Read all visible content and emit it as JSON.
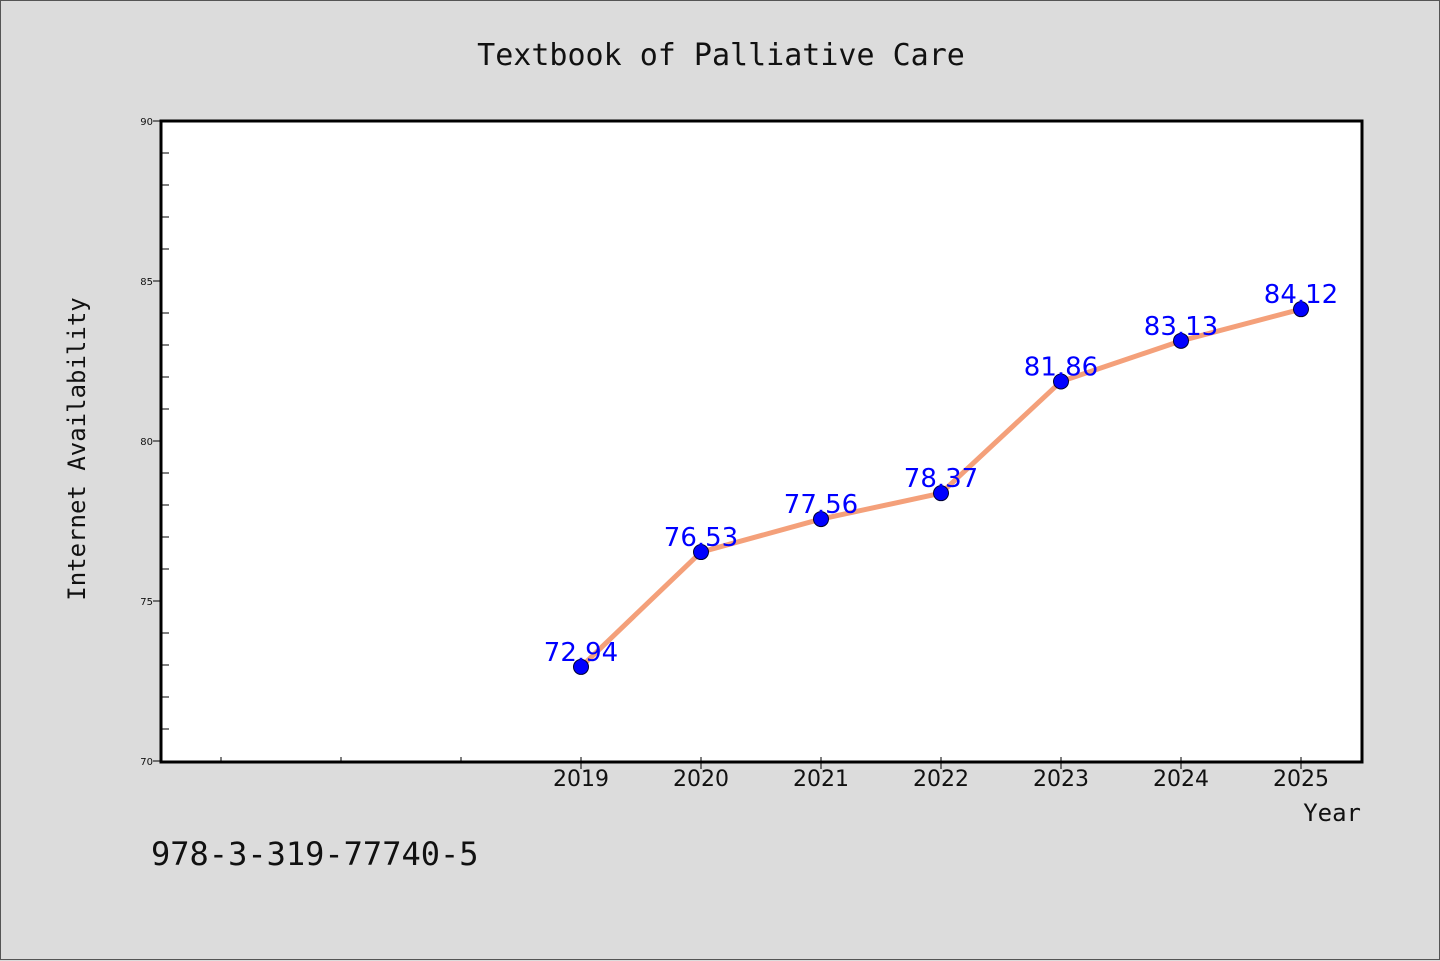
{
  "chart_data": {
    "type": "line",
    "title": "Textbook of Palliative Care",
    "xlabel": "Year",
    "ylabel": "Internet Availability",
    "categories": [
      "2019",
      "2020",
      "2021",
      "2022",
      "2023",
      "2024",
      "2025"
    ],
    "series": [
      {
        "values": [
          72.94,
          76.53,
          77.56,
          78.37,
          81.86,
          83.13,
          84.12
        ],
        "line_color": "#f4a07a",
        "marker_color": "#0000ff",
        "data_label_color": "#0000ff"
      }
    ],
    "ylim": [
      70,
      90
    ],
    "yticks": [
      "70",
      "75",
      "80",
      "85",
      "90"
    ],
    "grid": false,
    "legend": "none"
  },
  "footer": {
    "isbn": "978-3-319-77740-5"
  }
}
